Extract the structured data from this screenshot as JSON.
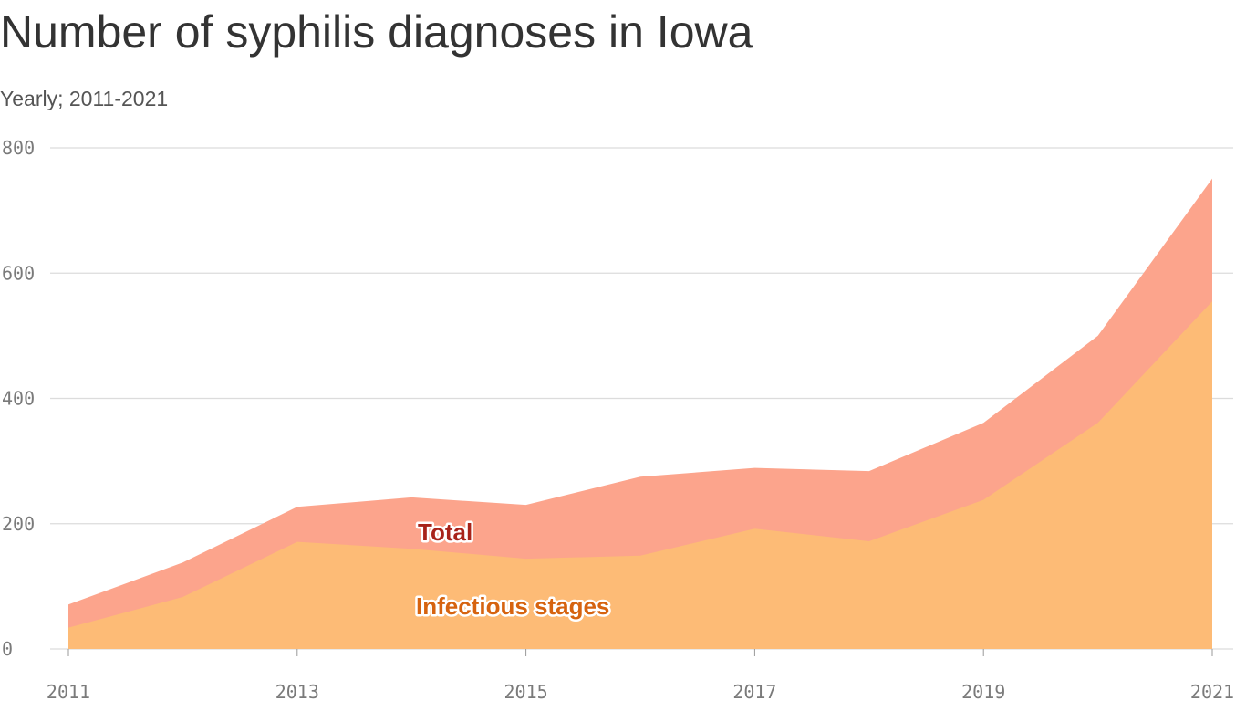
{
  "chart_data": {
    "type": "area",
    "title": "Number of syphilis diagnoses in Iowa",
    "subtitle": "Yearly; 2011-2021",
    "x": [
      2011,
      2012,
      2013,
      2014,
      2015,
      2016,
      2017,
      2018,
      2019,
      2020,
      2021
    ],
    "series": [
      {
        "name": "Total",
        "color": "#fca48c",
        "label_color": "#a8231a",
        "values": [
          71,
          138,
          227,
          242,
          230,
          275,
          289,
          284,
          361,
          500,
          751
        ]
      },
      {
        "name": "Infectious stages",
        "color": "#fdbb76",
        "label_color": "#d6630f",
        "values": [
          34,
          83,
          171,
          160,
          144,
          149,
          192,
          172,
          238,
          361,
          555
        ]
      }
    ],
    "xlim": [
      2011,
      2021
    ],
    "xticks": [
      2011,
      2013,
      2015,
      2017,
      2019,
      2021
    ],
    "ylim": [
      0,
      800
    ],
    "yticks": [
      0,
      200,
      400,
      600,
      800
    ],
    "grid": true
  }
}
